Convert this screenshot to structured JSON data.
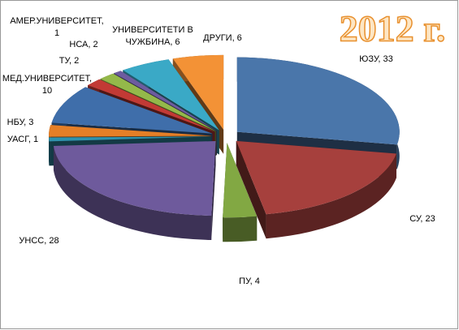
{
  "chart_data": {
    "type": "pie3d",
    "title": "2012 г.",
    "values": [
      33,
      23,
      4,
      28,
      1,
      3,
      10,
      2,
      2,
      1,
      6,
      6
    ],
    "value_labels": [
      "ЮЗУ, 33",
      "СУ, 23",
      "ПУ, 4",
      "УНСС, 28",
      "УАСГ, 1",
      "НБУ, 3",
      [
        "МЕД.УНИВЕРСИТЕТ,",
        "10"
      ],
      "ТУ, 2",
      "НСА, 2",
      [
        "АМЕР.УНИВЕРСИТЕТ,",
        "1"
      ],
      [
        "УНИВЕРСИТЕТИ В",
        "ЧУЖБИНА, 6"
      ],
      "ДРУГИ, 6"
    ],
    "colors": [
      "#4a76aa",
      "#a6403d",
      "#82a843",
      "#6e5a9c",
      "#2f92ad",
      "#e57f27",
      "#3f6eaa",
      "#c23a35",
      "#94b84a",
      "#6d5c9f",
      "#3aa9c6",
      "#f39236"
    ]
  }
}
